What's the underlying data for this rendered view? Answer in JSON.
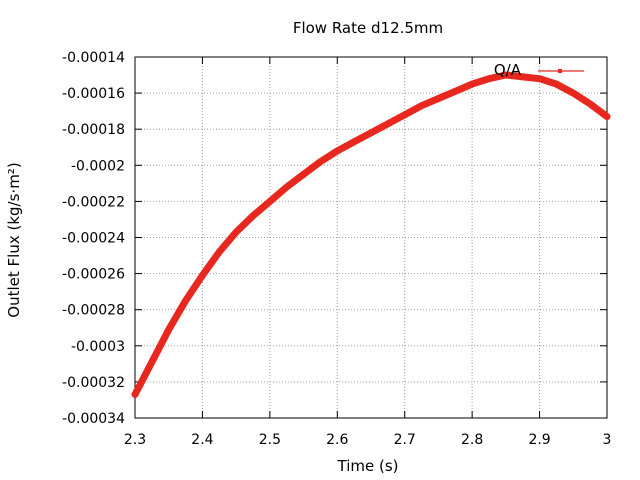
{
  "chart_data": {
    "type": "line",
    "title": "Flow Rate d12.5mm",
    "xlabel": "Time (s)",
    "ylabel": "Outlet Flux (kg/s·m²)",
    "xlim": [
      2.3,
      3.0
    ],
    "ylim": [
      -0.00034,
      -0.00014
    ],
    "xticks": [
      2.3,
      2.4,
      2.5,
      2.6,
      2.7,
      2.8,
      2.9,
      3.0
    ],
    "xtick_labels": [
      "2.3",
      "2.4",
      "2.5",
      "2.6",
      "2.7",
      "2.8",
      "2.9",
      "3"
    ],
    "yticks": [
      -0.00034,
      -0.00032,
      -0.0003,
      -0.00028,
      -0.00026,
      -0.00024,
      -0.00022,
      -0.0002,
      -0.00018,
      -0.00016,
      -0.00014
    ],
    "ytick_labels": [
      "-0.00034",
      "-0.00032",
      "-0.0003",
      "-0.00028",
      "-0.00026",
      "-0.00024",
      "-0.00022",
      "-0.0002",
      "-0.00018",
      "-0.00016",
      "-0.00014"
    ],
    "grid": true,
    "legend_position": "top-right",
    "series": [
      {
        "name": "Q/A",
        "color": "#e8281e",
        "x": [
          2.3,
          2.325,
          2.35,
          2.375,
          2.4,
          2.425,
          2.45,
          2.475,
          2.5,
          2.525,
          2.55,
          2.575,
          2.6,
          2.625,
          2.65,
          2.675,
          2.7,
          2.725,
          2.75,
          2.775,
          2.8,
          2.825,
          2.85,
          2.875,
          2.9,
          2.925,
          2.95,
          2.975,
          3.0
        ],
        "y": [
          -0.000327,
          -0.000309,
          -0.000291,
          -0.000275,
          -0.000261,
          -0.000248,
          -0.000237,
          -0.000228,
          -0.00022,
          -0.000212,
          -0.000205,
          -0.000198,
          -0.000192,
          -0.000187,
          -0.000182,
          -0.000177,
          -0.000172,
          -0.000167,
          -0.000163,
          -0.000159,
          -0.000155,
          -0.000152,
          -0.00015,
          -0.000151,
          -0.000152,
          -0.000155,
          -0.00016,
          -0.000166,
          -0.000173
        ]
      }
    ]
  }
}
